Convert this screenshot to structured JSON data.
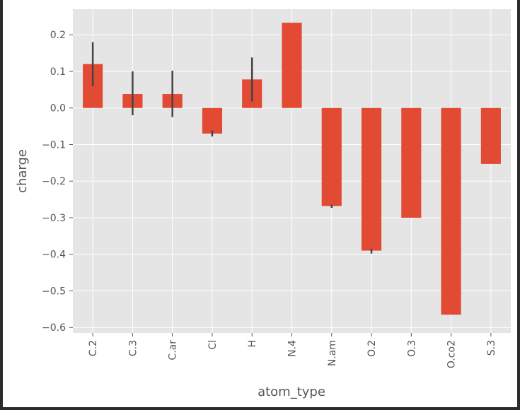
{
  "chart_data": {
    "type": "bar",
    "xlabel": "atom_type",
    "ylabel": "charge",
    "categories": [
      "C.2",
      "C.3",
      "C.ar",
      "Cl",
      "H",
      "N.4",
      "N.am",
      "O.2",
      "O.3",
      "O.co2",
      "S.3"
    ],
    "values": [
      0.12,
      0.038,
      0.038,
      -0.07,
      0.078,
      0.233,
      -0.268,
      -0.39,
      -0.3,
      -0.565,
      -0.153
    ],
    "error_bars": [
      [
        0.06,
        0.18
      ],
      [
        -0.02,
        0.1
      ],
      [
        -0.025,
        0.102
      ],
      [
        -0.078,
        -0.062
      ],
      [
        0.018,
        0.138
      ],
      null,
      [
        -0.273,
        -0.265
      ],
      [
        -0.398,
        -0.385
      ],
      null,
      null,
      null
    ],
    "ylim": [
      -0.615,
      0.27
    ],
    "yticks": [
      0.2,
      0.1,
      0.0,
      -0.1,
      -0.2,
      -0.3,
      -0.4,
      -0.5,
      -0.6
    ],
    "ytick_labels": [
      "0.2",
      "0.1",
      "0.0",
      "−0.1",
      "−0.2",
      "−0.3",
      "−0.4",
      "−0.5",
      "−0.6"
    ],
    "grid": true,
    "colors": {
      "bar": "#E24A33",
      "plot_background": "#E5E5E5",
      "grid": "#FFFFFF",
      "error_bar": "#444444",
      "text": "#555555"
    }
  }
}
